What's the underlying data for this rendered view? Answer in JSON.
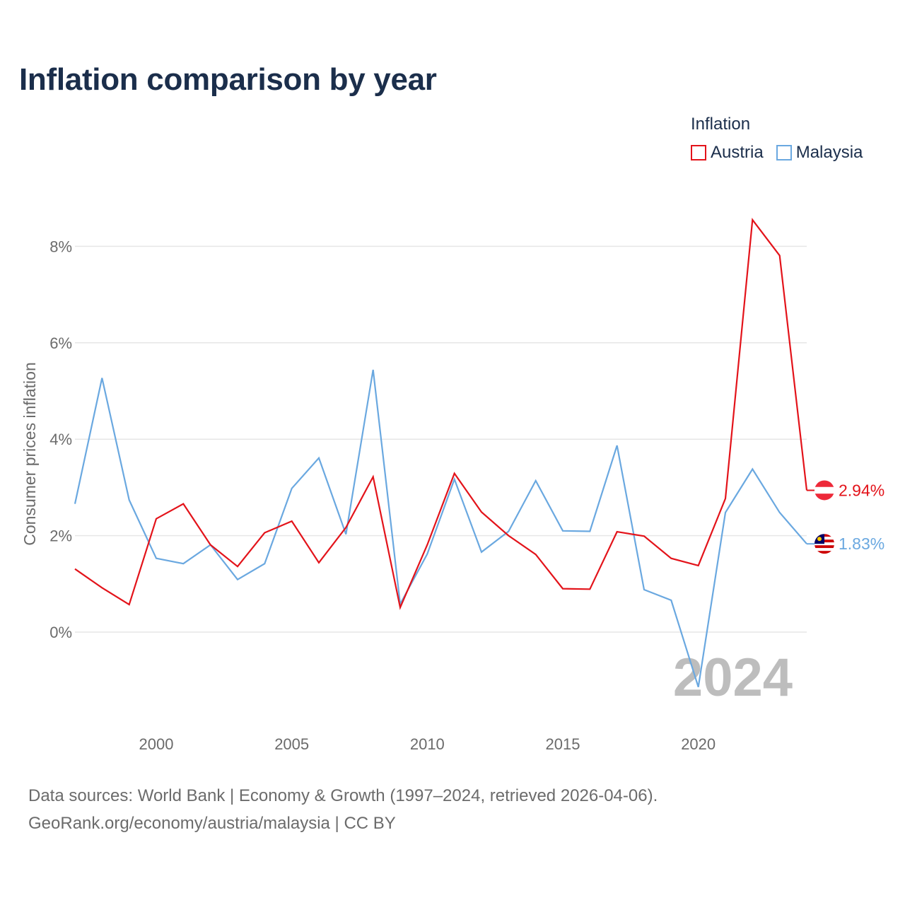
{
  "title": "Inflation comparison by year",
  "legend": {
    "title": "Inflation",
    "items": [
      {
        "label": "Austria",
        "color": "#e3131a"
      },
      {
        "label": "Malaysia",
        "color": "#6aa8e0"
      }
    ]
  },
  "chart_data": {
    "type": "line",
    "title": "Inflation comparison by year",
    "xlabel": "",
    "ylabel": "Consumer prices inflation",
    "xlim": [
      1997,
      2024
    ],
    "ylim": [
      -1.7,
      8.8
    ],
    "x_ticks": [
      2000,
      2005,
      2010,
      2015,
      2020
    ],
    "y_ticks": [
      0,
      2,
      4,
      6,
      8
    ],
    "y_tick_labels": [
      "0%",
      "2%",
      "4%",
      "6%",
      "8%"
    ],
    "grid": true,
    "x": [
      1997,
      1998,
      1999,
      2000,
      2001,
      2002,
      2003,
      2004,
      2005,
      2006,
      2007,
      2008,
      2009,
      2010,
      2011,
      2012,
      2013,
      2014,
      2015,
      2016,
      2017,
      2018,
      2019,
      2020,
      2021,
      2022,
      2023,
      2024
    ],
    "series": [
      {
        "name": "Austria",
        "color": "#e3131a",
        "end_label": "2.94%",
        "values": [
          1.31,
          0.92,
          0.57,
          2.35,
          2.66,
          1.81,
          1.36,
          2.06,
          2.3,
          1.44,
          2.17,
          3.22,
          0.51,
          1.81,
          3.29,
          2.49,
          2.0,
          1.61,
          0.9,
          0.89,
          2.08,
          1.99,
          1.53,
          1.38,
          2.77,
          8.55,
          7.81,
          2.94
        ]
      },
      {
        "name": "Malaysia",
        "color": "#6aa8e0",
        "end_label": "1.83%",
        "values": [
          2.66,
          5.27,
          2.74,
          1.53,
          1.42,
          1.81,
          1.09,
          1.42,
          2.98,
          3.61,
          2.03,
          5.44,
          0.58,
          1.62,
          3.17,
          1.66,
          2.09,
          3.14,
          2.1,
          2.09,
          3.87,
          0.88,
          0.66,
          -1.14,
          2.48,
          3.38,
          2.48,
          1.83
        ]
      }
    ],
    "annotations": [
      "2024"
    ]
  },
  "footer": {
    "line1": "Data sources: World Bank | Economy & Growth (1997–2024, retrieved 2026-04-06).",
    "line2": "GeoRank.org/economy/austria/malaysia | CC BY"
  }
}
